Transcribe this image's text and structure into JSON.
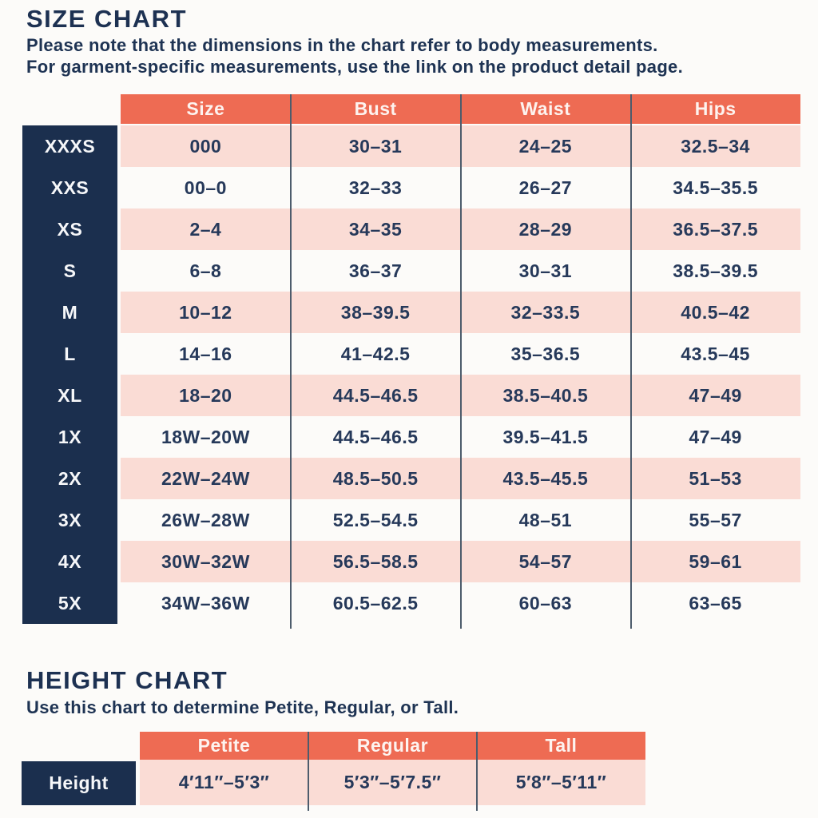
{
  "colors": {
    "navy": "#1b2f4e",
    "coral": "#ee6b53",
    "pink": "#fadcd5",
    "divider": "#4d5c6c",
    "text": "#26395a"
  },
  "size_chart": {
    "title": "SIZE CHART",
    "note_line1": "Please note that the dimensions in the chart refer to body measurements.",
    "note_line2": "For garment-specific measurements, use the link on the product detail page.",
    "columns": [
      "Size",
      "Bust",
      "Waist",
      "Hips"
    ],
    "rows": [
      {
        "label": "XXXS",
        "size": "000",
        "bust": "30–31",
        "waist": "24–25",
        "hips": "32.5–34"
      },
      {
        "label": "XXS",
        "size": "00–0",
        "bust": "32–33",
        "waist": "26–27",
        "hips": "34.5–35.5"
      },
      {
        "label": "XS",
        "size": "2–4",
        "bust": "34–35",
        "waist": "28–29",
        "hips": "36.5–37.5"
      },
      {
        "label": "S",
        "size": "6–8",
        "bust": "36–37",
        "waist": "30–31",
        "hips": "38.5–39.5"
      },
      {
        "label": "M",
        "size": "10–12",
        "bust": "38–39.5",
        "waist": "32–33.5",
        "hips": "40.5–42"
      },
      {
        "label": "L",
        "size": "14–16",
        "bust": "41–42.5",
        "waist": "35–36.5",
        "hips": "43.5–45"
      },
      {
        "label": "XL",
        "size": "18–20",
        "bust": "44.5–46.5",
        "waist": "38.5–40.5",
        "hips": "47–49"
      },
      {
        "label": "1X",
        "size": "18W–20W",
        "bust": "44.5–46.5",
        "waist": "39.5–41.5",
        "hips": "47–49"
      },
      {
        "label": "2X",
        "size": "22W–24W",
        "bust": "48.5–50.5",
        "waist": "43.5–45.5",
        "hips": "51–53"
      },
      {
        "label": "3X",
        "size": "26W–28W",
        "bust": "52.5–54.5",
        "waist": "48–51",
        "hips": "55–57"
      },
      {
        "label": "4X",
        "size": "30W–32W",
        "bust": "56.5–58.5",
        "waist": "54–57",
        "hips": "59–61"
      },
      {
        "label": "5X",
        "size": "34W–36W",
        "bust": "60.5–62.5",
        "waist": "60–63",
        "hips": "63–65"
      }
    ]
  },
  "height_chart": {
    "title": "HEIGHT CHART",
    "note": "Use this chart to determine Petite, Regular, or Tall.",
    "columns": [
      "Petite",
      "Regular",
      "Tall"
    ],
    "row_label": "Height",
    "values": [
      "4′11″–5′3″",
      "5′3″–5′7.5″",
      "5′8″–5′11″"
    ]
  }
}
